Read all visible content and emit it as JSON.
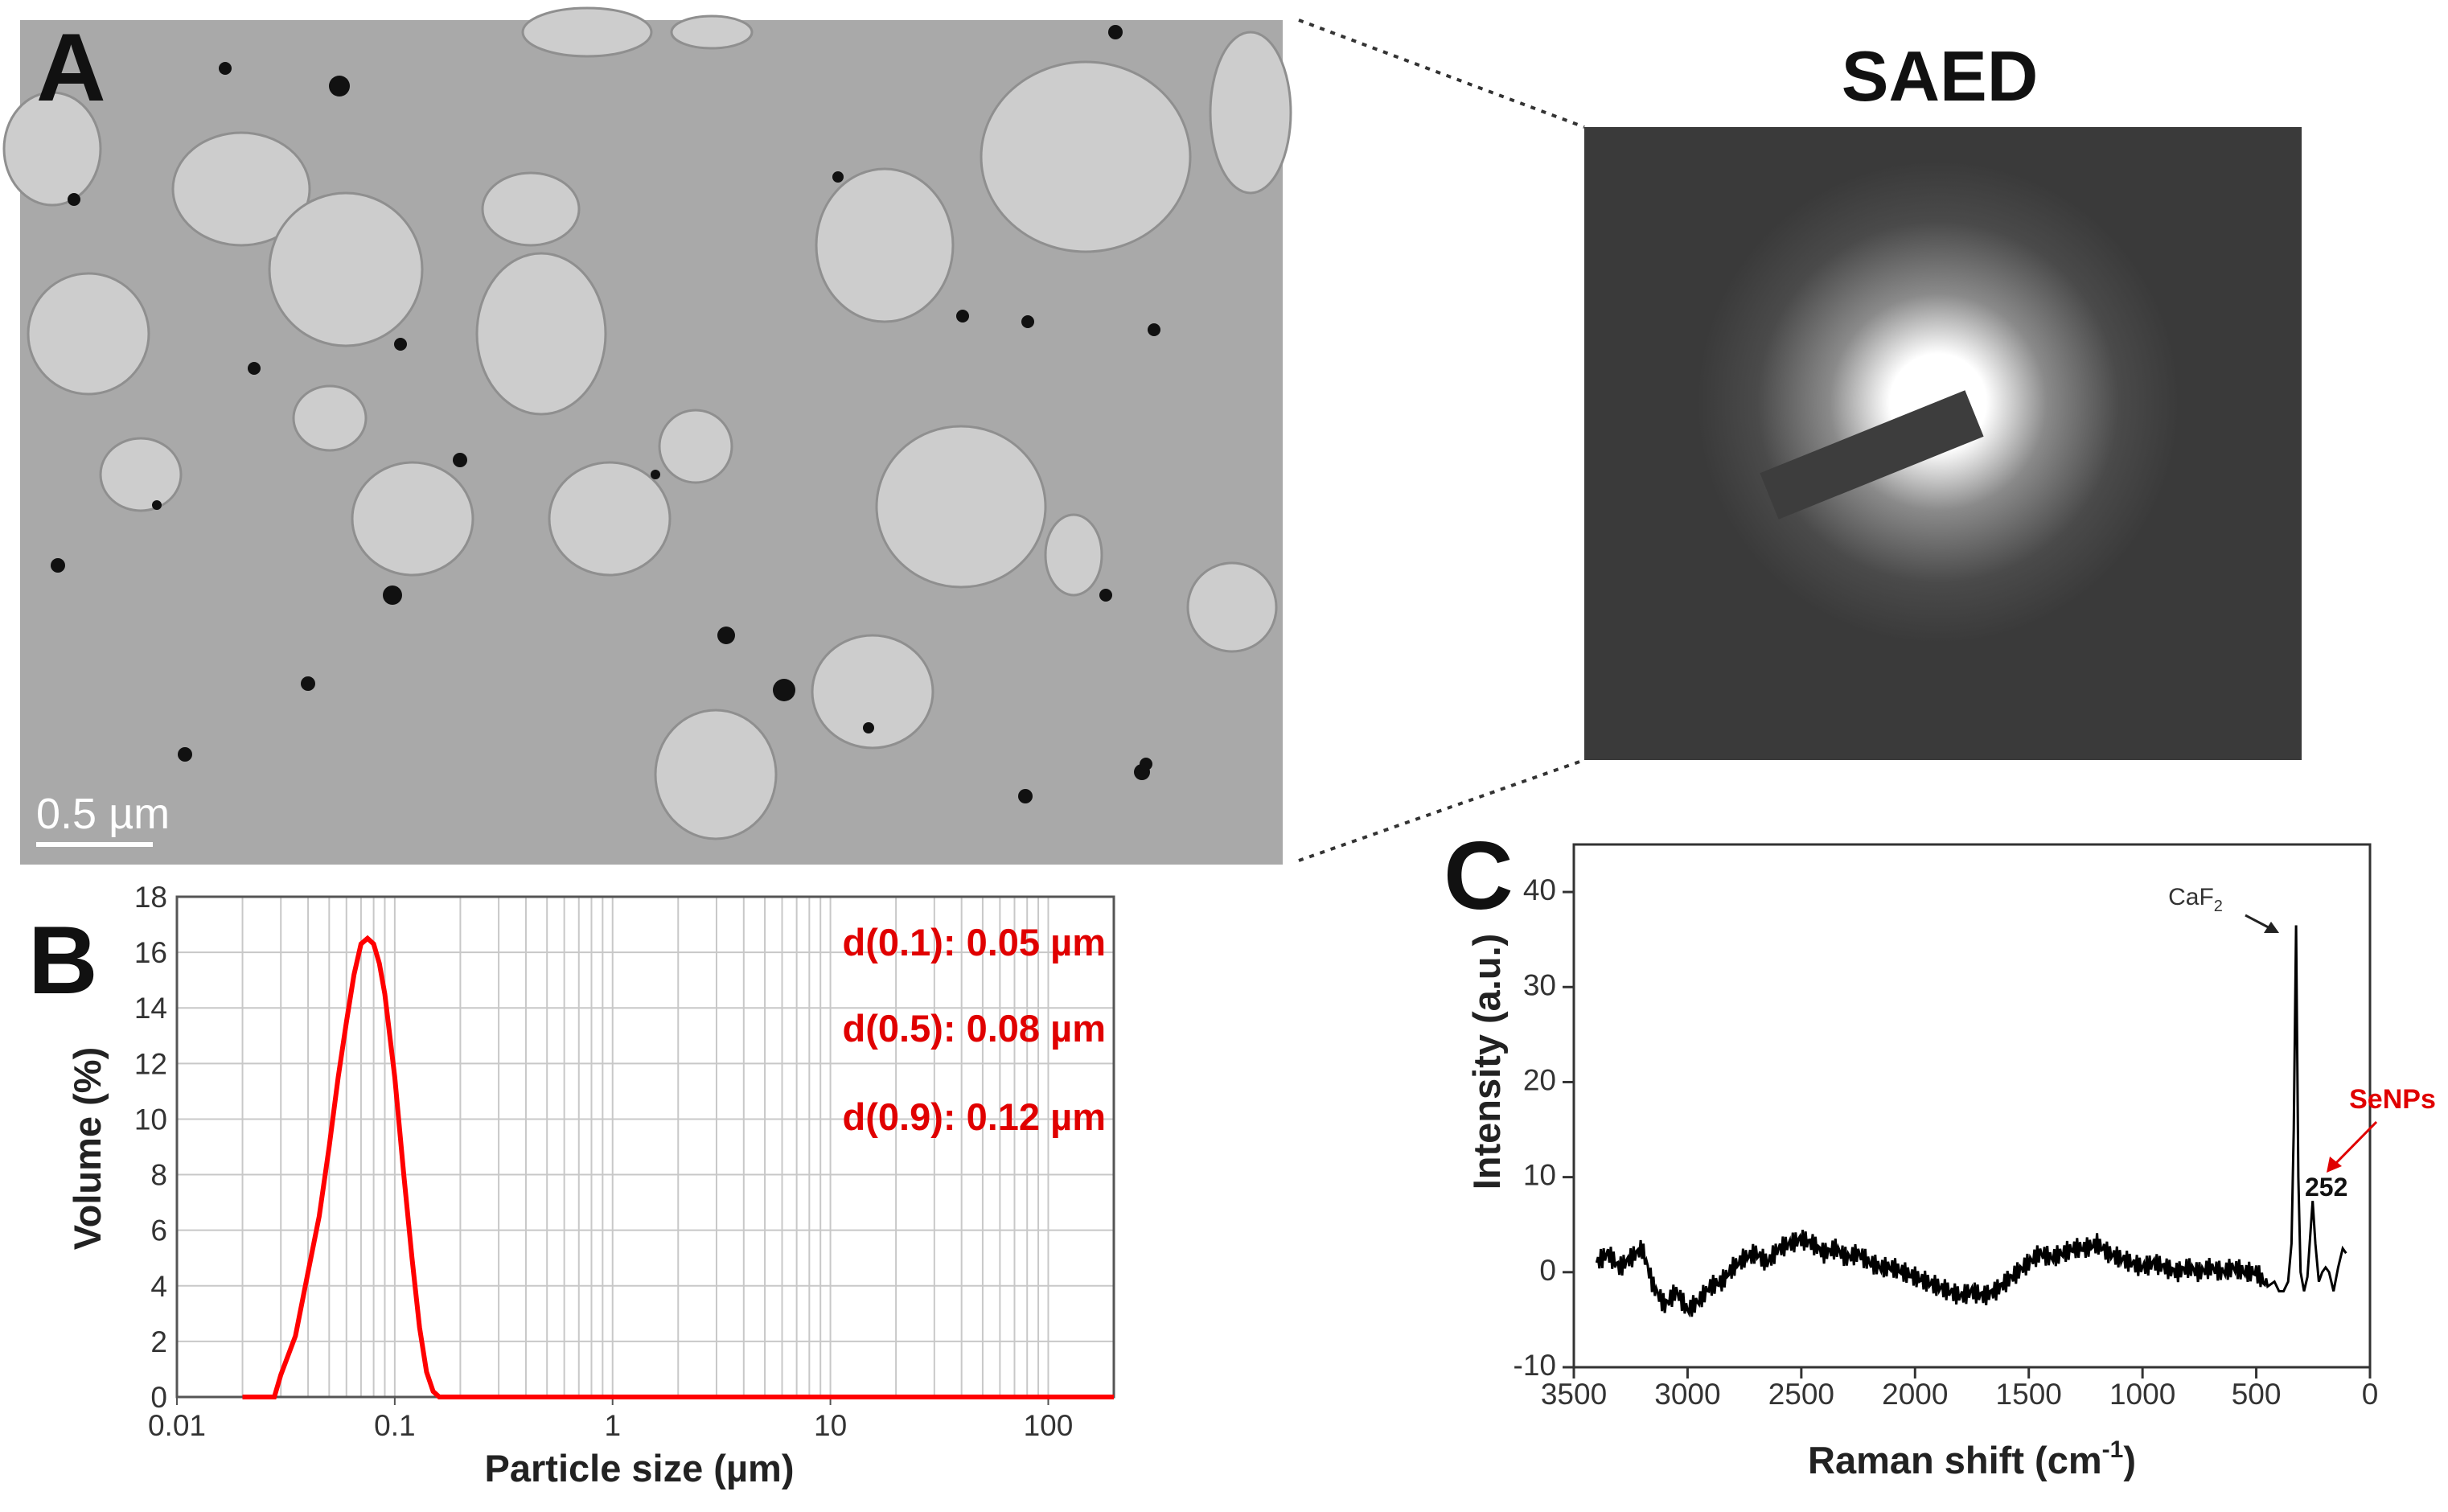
{
  "panels": {
    "a": {
      "letter": "A",
      "scale_bar": "0.5 µm"
    },
    "saed": {
      "title": "SAED"
    },
    "b": {
      "letter": "B"
    },
    "c": {
      "letter": "C"
    }
  },
  "colors": {
    "curve_b": "#ff0000",
    "curve_c": "#000000",
    "annotation": "#e00000",
    "tem_bg": "#a9a9a9",
    "saed_bg": "#3a3a3a"
  },
  "chart_data": [
    {
      "type": "line",
      "panel": "B",
      "xlabel": "Particle size (µm)",
      "ylabel": "Volume (%)",
      "x_scale": "log",
      "xlim": [
        0.01,
        200
      ],
      "ylim": [
        0,
        18
      ],
      "x_ticks": [
        0.01,
        0.1,
        1,
        10,
        100
      ],
      "x_tick_labels": [
        "0.01",
        "0.1",
        "1",
        "10",
        "100"
      ],
      "y_ticks": [
        0,
        2,
        4,
        6,
        8,
        10,
        12,
        14,
        16,
        18
      ],
      "grid": true,
      "series": [
        {
          "x": [
            0.02,
            0.028,
            0.03,
            0.035,
            0.04,
            0.045,
            0.05,
            0.055,
            0.06,
            0.065,
            0.07,
            0.075,
            0.08,
            0.085,
            0.09,
            0.1,
            0.11,
            0.12,
            0.13,
            0.14,
            0.15,
            0.16,
            0.17,
            0.2,
            1,
            10,
            200
          ],
          "y": [
            0,
            0,
            0.8,
            2.2,
            4.5,
            6.5,
            9.0,
            11.5,
            13.5,
            15.2,
            16.3,
            16.5,
            16.3,
            15.6,
            14.5,
            11.5,
            8.0,
            5.0,
            2.5,
            0.9,
            0.2,
            0,
            0,
            0,
            0,
            0,
            0
          ]
        }
      ],
      "annotations": [
        "d(0.1): 0.05 µm",
        "d(0.5): 0.08 µm",
        "d(0.9): 0.12 µm"
      ]
    },
    {
      "type": "line",
      "panel": "C",
      "xlabel": "Raman shift (cm",
      "xlabel_sup": "-1",
      "xlabel_close": ")",
      "ylabel": "Intensity (a.u.)",
      "x_reversed": true,
      "xlim": [
        3500,
        0
      ],
      "ylim": [
        -10,
        45
      ],
      "x_ticks": [
        3500,
        3000,
        2500,
        2000,
        1500,
        1000,
        500,
        0
      ],
      "y_ticks": [
        -10,
        0,
        10,
        20,
        30,
        40
      ],
      "grid": false,
      "series": [
        {
          "x": [
            3400,
            3350,
            3300,
            3250,
            3200,
            3150,
            3100,
            3050,
            3000,
            2950,
            2900,
            2850,
            2800,
            2750,
            2700,
            2650,
            2600,
            2550,
            2500,
            2450,
            2400,
            2350,
            2300,
            2250,
            2200,
            2150,
            2100,
            2050,
            2000,
            1950,
            1900,
            1850,
            1800,
            1750,
            1700,
            1650,
            1600,
            1550,
            1500,
            1450,
            1400,
            1350,
            1300,
            1250,
            1200,
            1150,
            1100,
            1050,
            1000,
            950,
            900,
            850,
            800,
            750,
            700,
            650,
            600,
            550,
            500,
            450,
            420,
            400,
            380,
            360,
            345,
            335,
            325,
            315,
            305,
            290,
            275,
            265,
            252,
            240,
            225,
            210,
            195,
            180,
            160,
            140,
            120,
            105
          ],
          "y": [
            1.0,
            2.0,
            0.5,
            1.5,
            2.5,
            -1.5,
            -3.5,
            -2.0,
            -4.0,
            -3.0,
            -1.5,
            -1.0,
            0.5,
            1.5,
            2.0,
            1.0,
            2.5,
            3.0,
            3.5,
            3.0,
            2.0,
            2.5,
            1.5,
            2.0,
            1.0,
            0.5,
            0.5,
            0.0,
            -0.5,
            -1.0,
            -1.5,
            -2.0,
            -2.5,
            -2.0,
            -2.5,
            -2.0,
            -1.0,
            0.0,
            1.0,
            2.0,
            1.5,
            2.0,
            2.5,
            2.5,
            3.0,
            2.0,
            1.5,
            1.0,
            0.5,
            1.0,
            0.5,
            0.0,
            0.5,
            0.0,
            0.5,
            0.0,
            0.5,
            0.0,
            0.0,
            -1.5,
            -1.0,
            -2.0,
            -2.0,
            -1.0,
            3.0,
            15.0,
            36.5,
            10.0,
            0.0,
            -2.0,
            -0.5,
            3.0,
            7.5,
            3.0,
            -1.0,
            0.0,
            0.5,
            0.0,
            -2.0,
            0.5,
            2.5,
            2.0
          ]
        }
      ],
      "annotations": {
        "caf2": "CaF",
        "caf2_sub": "2",
        "senps": "SeNPs",
        "peak": "252"
      }
    }
  ]
}
